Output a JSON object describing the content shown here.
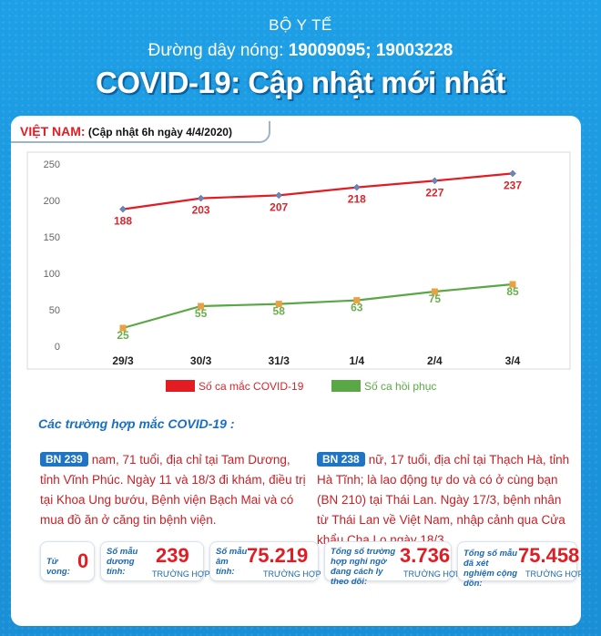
{
  "header": {
    "org": "BỘ Y TẾ",
    "hotline_label": "Đường dây nóng:",
    "hotline_numbers": "19009095; 19003228",
    "headline": "COVID-19: Cập nhật mới nhất"
  },
  "card": {
    "country": "VIỆT NAM:",
    "update_note": "(Cập nhật 6h ngày 4/4/2020)"
  },
  "chart_data": {
    "type": "line",
    "x": [
      "29/3",
      "30/3",
      "31/3",
      "1/4",
      "2/4",
      "3/4"
    ],
    "yticks": [
      0,
      50,
      100,
      150,
      200,
      250
    ],
    "ylim": [
      0,
      250
    ],
    "series": [
      {
        "name": "Số ca mắc COVID-19",
        "color": "#e31c23",
        "values": [
          188,
          203,
          207,
          218,
          227,
          237
        ]
      },
      {
        "name": "Số ca hồi phục",
        "color": "#5aa845",
        "values": [
          25,
          55,
          58,
          63,
          75,
          85
        ]
      }
    ],
    "legend": "bottom",
    "grid": false
  },
  "cases": {
    "title": "Các trường hợp mắc COVID-19 :",
    "left": {
      "badge": "BN 239",
      "text": "nam, 71 tuổi, địa chỉ tại Tam Dương, tỉnh Vĩnh Phúc. Ngày 11 và 18/3 đi khám, điều trị tại Khoa Ung bướu, Bệnh viện Bạch Mai và có mua đồ ăn ở căng tin bệnh viện."
    },
    "right": {
      "badge": "BN 238",
      "text": "nữ, 17 tuổi, địa chỉ tại Thạch Hà, tỉnh Hà Tĩnh; là lao động tự do và có ở cùng bạn (BN 210) tại Thái Lan. Ngày 17/3, bệnh nhân từ Thái Lan về Việt Nam, nhập cảnh qua Cửa khẩu Cha Lo ngày 18/3."
    }
  },
  "stats": {
    "deaths": {
      "label": "Tử vong:",
      "value": "0"
    },
    "positive": {
      "label": "Số mẫu dương tính:",
      "value": "239",
      "unit": "TRƯỜNG HỢP"
    },
    "negative": {
      "label": "Số mẫu âm tính:",
      "value": "75.219",
      "unit": "TRƯỜNG HỢP"
    },
    "isolation": {
      "label": "Tổng số trường hợp nghi ngờ đang cách ly theo dõi:",
      "value": "3.736",
      "unit": "TRƯỜNG HỢP"
    },
    "tested": {
      "label": "Tổng số mẫu đã xét nghiệm cộng dồn:",
      "value": "75.458",
      "unit": "TRƯỜNG HỢP"
    }
  }
}
